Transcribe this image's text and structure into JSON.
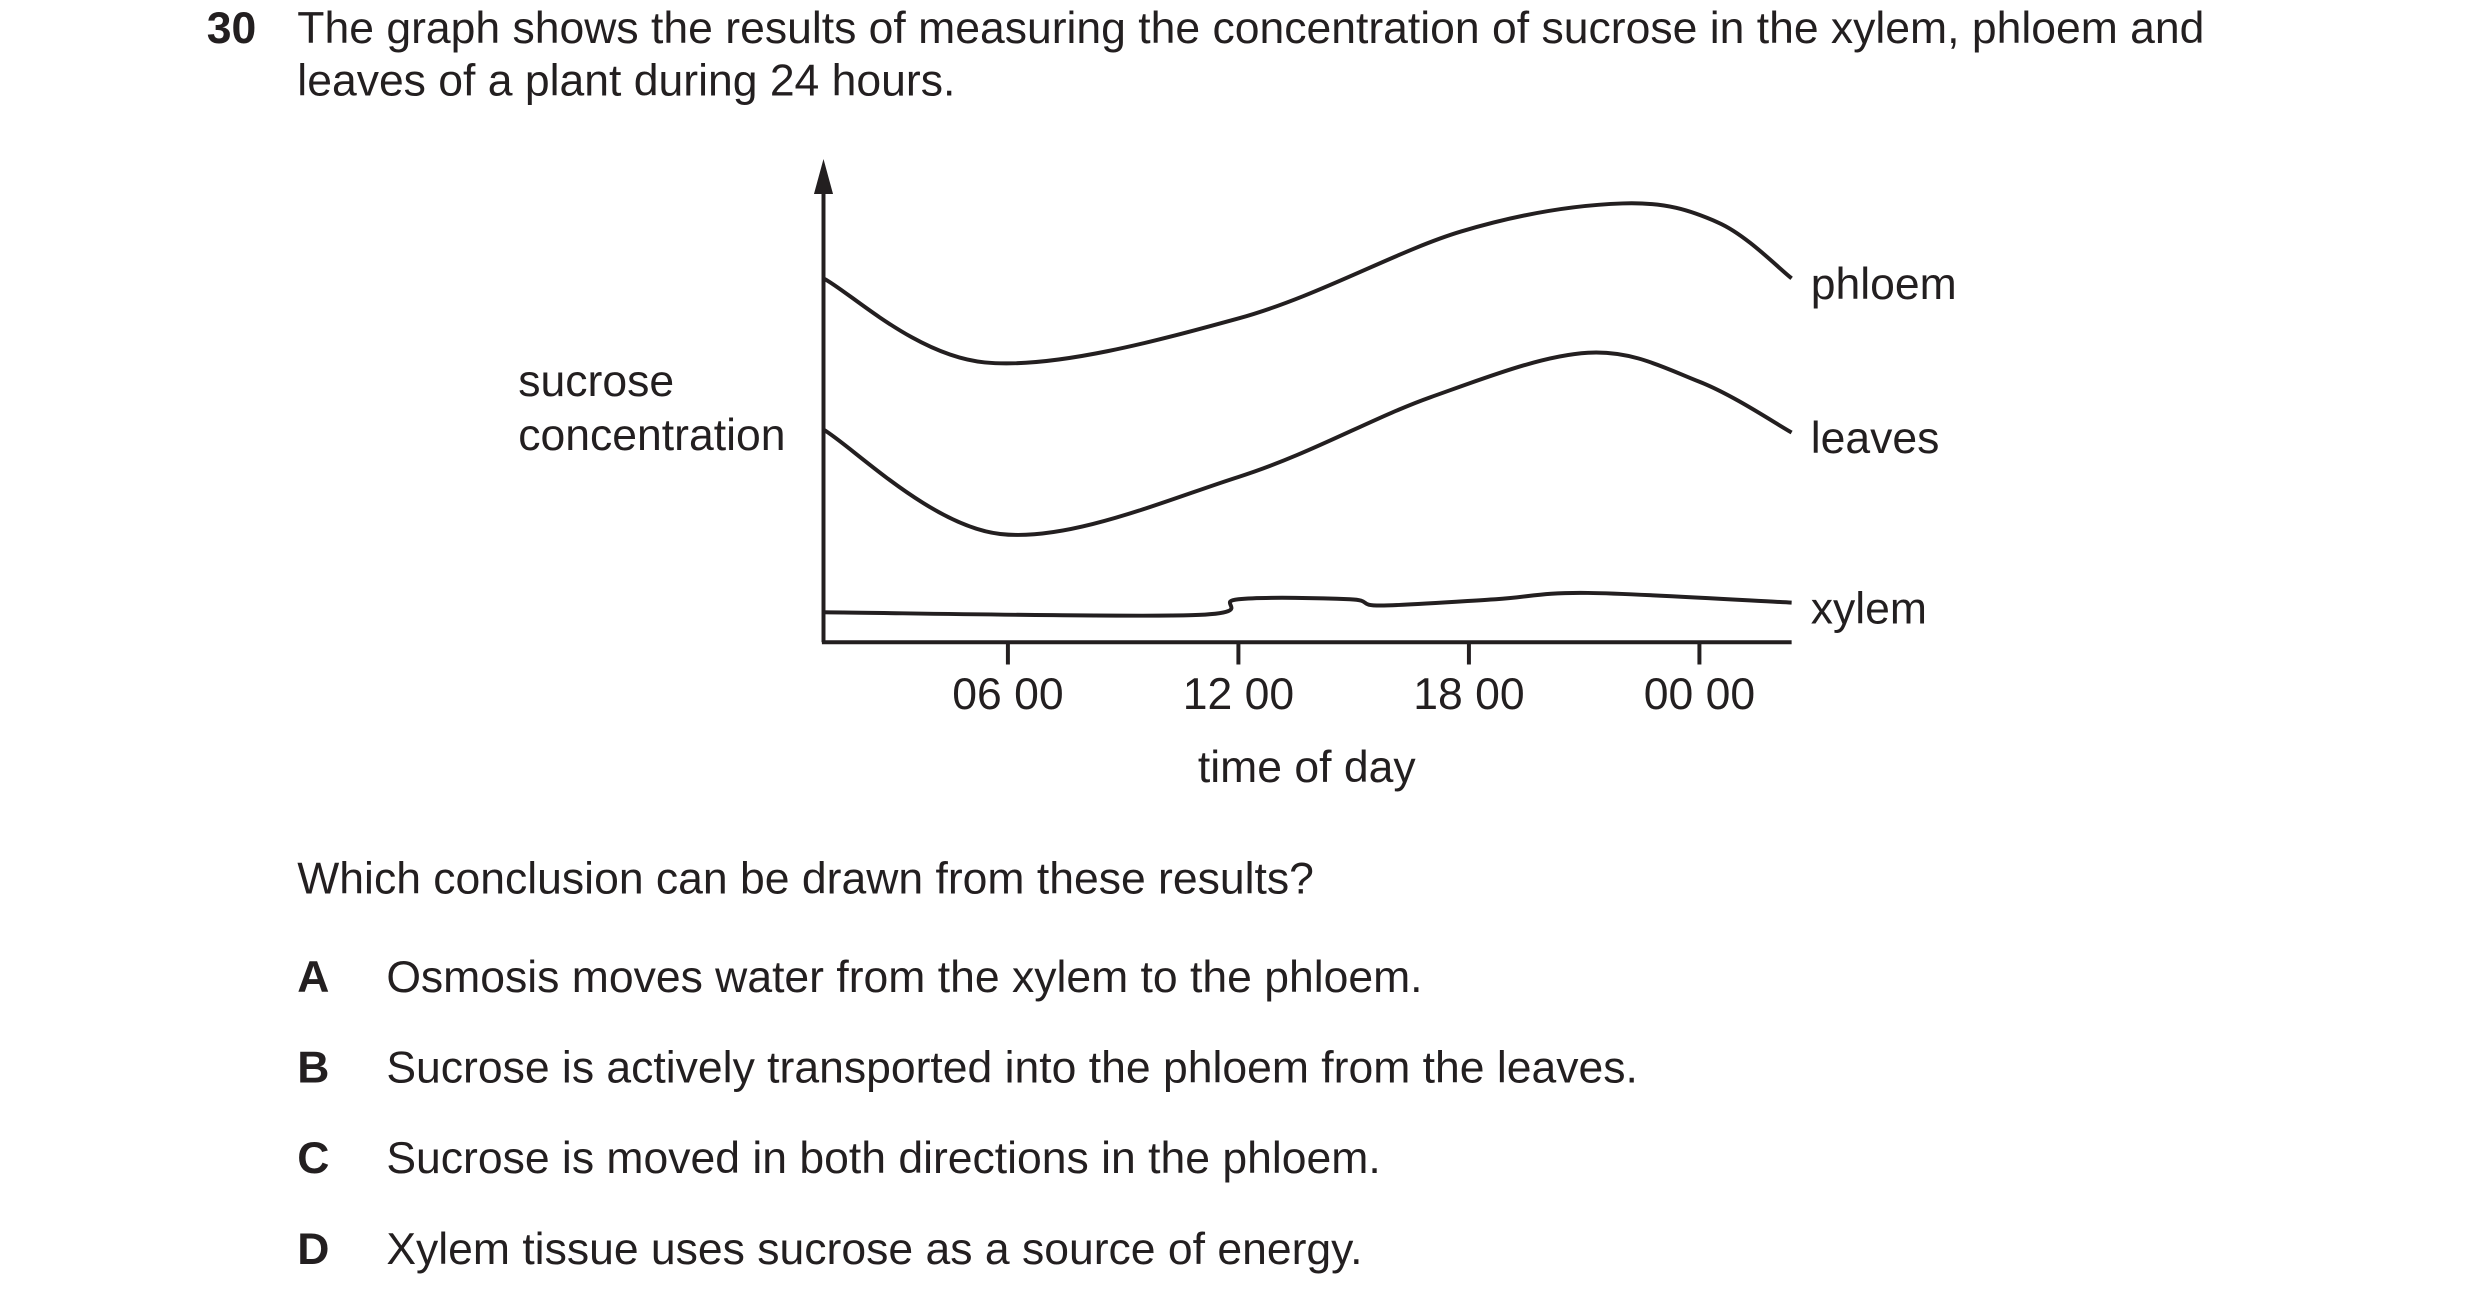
{
  "question": {
    "number": "30",
    "lines": [
      "The graph shows the results of measuring the concentration of sucrose in the xylem, phloem and",
      "leaves of a plant during 24 hours."
    ]
  },
  "chart_data": {
    "type": "line",
    "ylabel": [
      "sucrose",
      "concentration"
    ],
    "xlabel": "time of day",
    "xlim": [
      1.2,
      26.4
    ],
    "ylim": [
      0,
      100
    ],
    "xticks": [
      {
        "value": 6,
        "label": "06 00"
      },
      {
        "value": 12,
        "label": "12 00"
      },
      {
        "value": 18,
        "label": "18 00"
      },
      {
        "value": 24,
        "label": "00 00"
      }
    ],
    "series": [
      {
        "name": "phloem",
        "color": "#231f20",
        "x": [
          1.2,
          5.4,
          12,
          17.8,
          22,
          24.5,
          26.4
        ],
        "values": [
          75.3,
          57.9,
          67,
          85,
          90.8,
          86.8,
          75.3
        ]
      },
      {
        "name": "leaves",
        "color": "#231f20",
        "x": [
          1.2,
          5.8,
          12,
          17,
          21.1,
          24,
          26.4
        ],
        "values": [
          44,
          22.4,
          34.2,
          50.7,
          59.9,
          53.9,
          43.4
        ]
      },
      {
        "name": "xylem",
        "color": "#231f20",
        "x": [
          1.2,
          10.8,
          12,
          14.9,
          15.7,
          18.7,
          21.1,
          26.4
        ],
        "values": [
          6.2,
          5.6,
          8.9,
          8.9,
          7.6,
          8.9,
          10.2,
          8.2
        ]
      }
    ]
  },
  "prompt": "Which conclusion can be drawn from these results?",
  "options": [
    {
      "letter": "A",
      "text": "Osmosis moves water from the xylem to the phloem."
    },
    {
      "letter": "B",
      "text": "Sucrose is actively transported into the phloem from the leaves."
    },
    {
      "letter": "C",
      "text": "Sucrose is moved in both directions in the phloem."
    },
    {
      "letter": "D",
      "text": "Xylem tissue uses sucrose as a source of energy."
    }
  ]
}
